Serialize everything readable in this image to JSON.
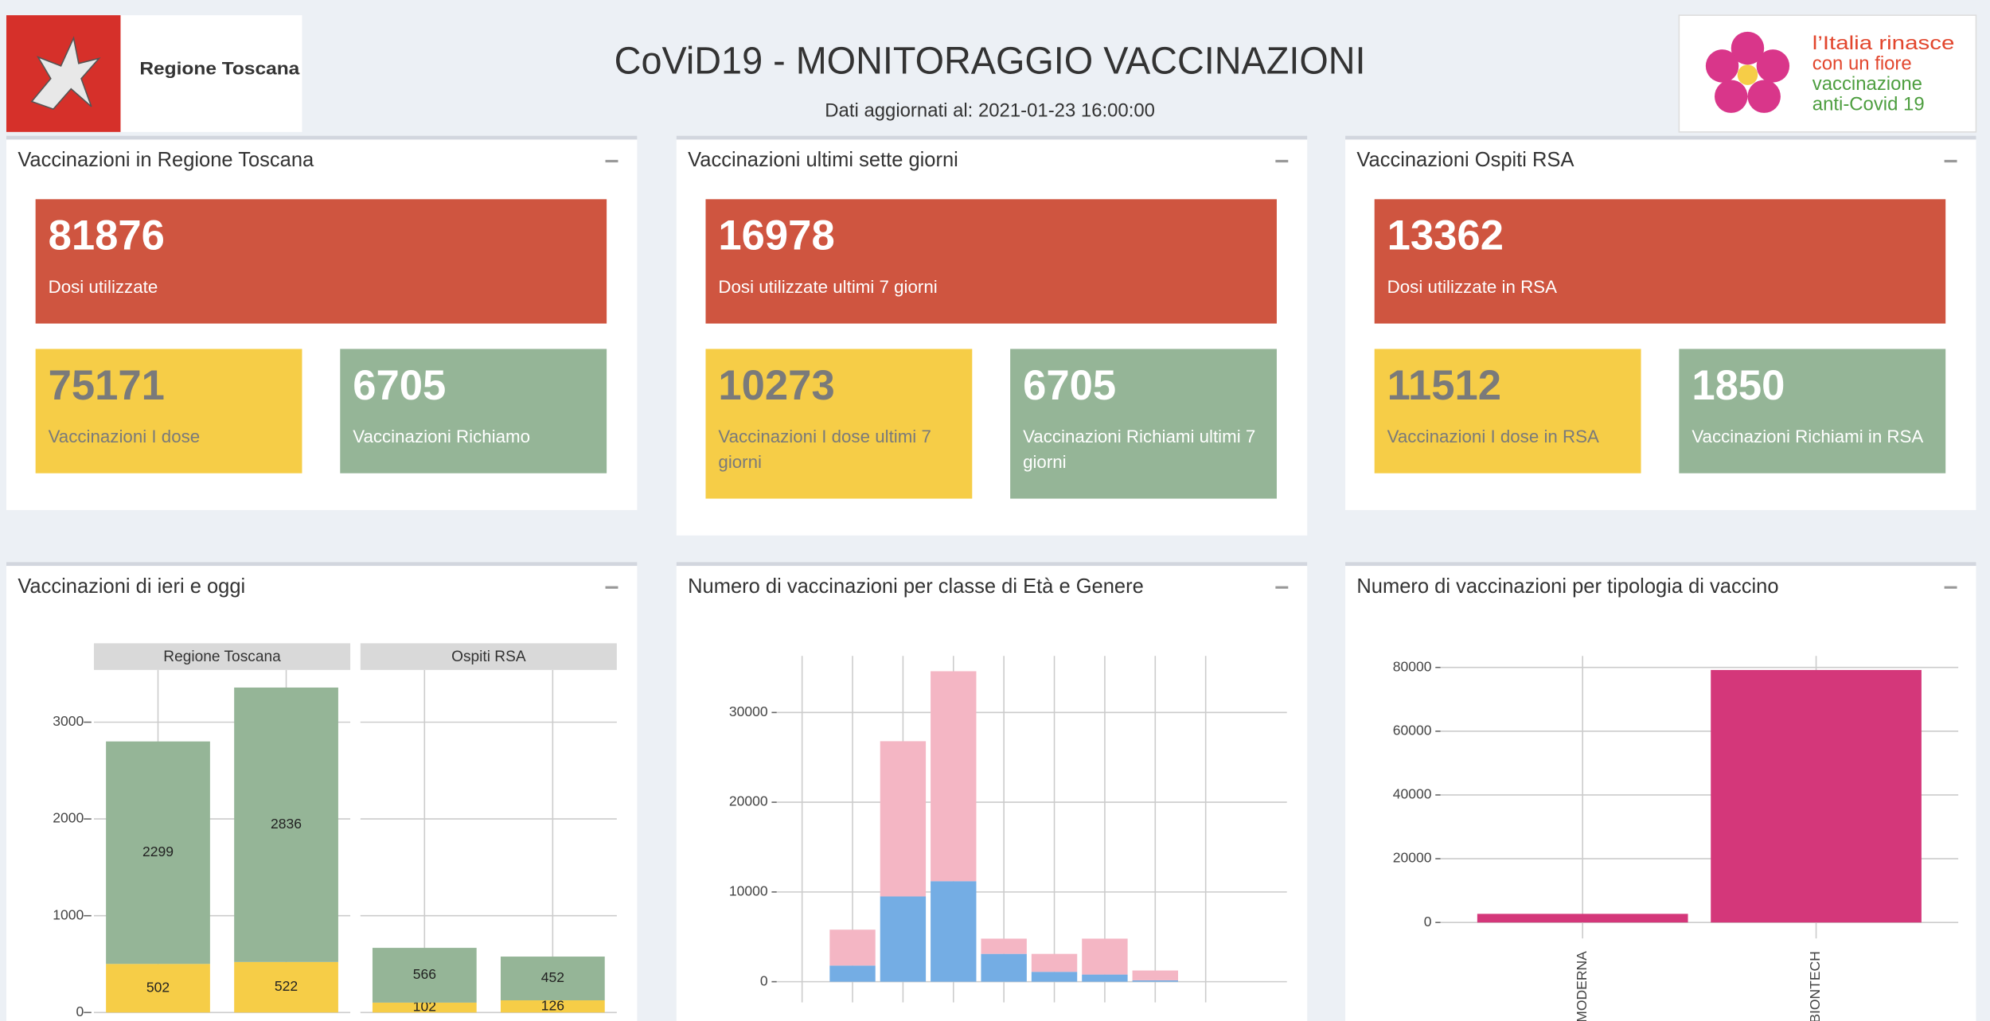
{
  "header": {
    "logo_left": "Regione Toscana",
    "title": "CoViD19 - MONITORAGGIO VACCINAZIONI",
    "subtitle": "Dati aggiornati al: 2021-01-23 16:00:00",
    "logo_right": [
      "l’Italia rinasce",
      "con un fiore",
      "vaccinazione",
      "anti-Covid 19"
    ]
  },
  "panels": [
    {
      "title": "Vaccinazioni in Regione Toscana",
      "main": {
        "value": 81876,
        "label": "Dosi utilizzate"
      },
      "boxes": [
        {
          "value": 75171,
          "label": "Vaccinazioni I dose"
        },
        {
          "value": 6705,
          "label": "Vaccinazioni Richiamo"
        }
      ]
    },
    {
      "title": "Vaccinazioni ultimi sette giorni",
      "main": {
        "value": 16978,
        "label": "Dosi utilizzate ultimi 7 giorni"
      },
      "boxes": [
        {
          "value": 10273,
          "label": "Vaccinazioni I dose ultimi 7 giorni"
        },
        {
          "value": 6705,
          "label": "Vaccinazioni Richiami ultimi 7 giorni"
        }
      ]
    },
    {
      "title": "Vaccinazioni Ospiti RSA",
      "main": {
        "value": 13362,
        "label": "Dosi utilizzate in RSA"
      },
      "boxes": [
        {
          "value": 11512,
          "label": "Vaccinazioni I dose in RSA"
        },
        {
          "value": 1850,
          "label": "Vaccinazioni Richiami in RSA"
        }
      ]
    }
  ],
  "charts": [
    {
      "title": "Vaccinazioni di ieri e oggi",
      "type": "facet_stacked_bar",
      "ylim": [
        0,
        3540
      ],
      "yticks": [
        0,
        1000,
        2000,
        3000
      ],
      "grid": true,
      "facets": [
        {
          "name": "Regione Toscana",
          "series": [
            {
              "color": "#f6cd47",
              "values": [
                502,
                522
              ]
            },
            {
              "color": "#95b597",
              "values": [
                2299,
                2836
              ]
            }
          ]
        },
        {
          "name": "Ospiti RSA",
          "series": [
            {
              "color": "#f6cd47",
              "values": [
                102,
                126
              ]
            },
            {
              "color": "#95b597",
              "values": [
                566,
                452
              ]
            }
          ]
        }
      ]
    },
    {
      "title": "Numero di vaccinazioni per classe di Età e Genere",
      "type": "stacked_bar",
      "ylim": [
        -2300,
        36300
      ],
      "yticks": [
        0,
        10000,
        20000,
        30000
      ],
      "grid": true,
      "categories": [
        null,
        null,
        null,
        null,
        null,
        null,
        null,
        null,
        null
      ],
      "series": [
        {
          "color": "#74ade4",
          "values": [
            null,
            1800,
            9500,
            11200,
            3100,
            1100,
            800,
            150,
            null
          ]
        },
        {
          "color": "#f4b6c4",
          "values": [
            null,
            4000,
            17300,
            23400,
            1700,
            2000,
            4000,
            1100,
            null
          ]
        }
      ]
    },
    {
      "title": "Numero di vaccinazioni per tipologia di vaccino",
      "type": "bar",
      "ylim": [
        -5000,
        83600
      ],
      "yticks": [
        0,
        20000,
        40000,
        60000,
        80000
      ],
      "grid": true,
      "categories": [
        "MODERNA",
        "BIONTECH"
      ],
      "color": "#d4377a",
      "values": [
        2700,
        79200
      ]
    }
  ]
}
